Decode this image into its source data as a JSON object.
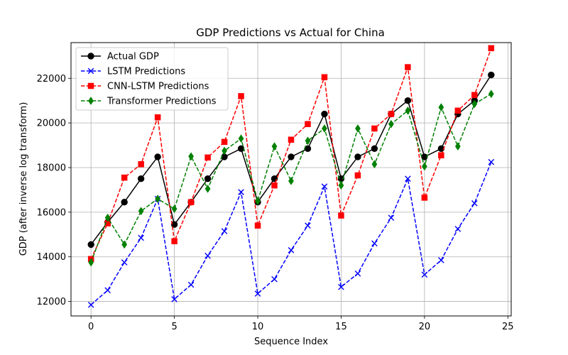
{
  "chart_data": {
    "type": "line",
    "title": "GDP Predictions vs Actual for China",
    "xlabel": "Sequence Index",
    "ylabel": "GDP (after inverse log transform)",
    "xlim": [
      -1.2,
      25.2
    ],
    "ylim": [
      11350,
      23600
    ],
    "x_ticks": [
      0,
      5,
      10,
      15,
      20,
      25
    ],
    "y_ticks": [
      12000,
      14000,
      16000,
      18000,
      20000,
      22000
    ],
    "grid": true,
    "legend_position": "upper-left",
    "x": [
      0,
      1,
      2,
      3,
      4,
      5,
      6,
      7,
      8,
      9,
      10,
      11,
      12,
      13,
      14,
      15,
      16,
      17,
      18,
      19,
      20,
      21,
      22,
      23,
      24
    ],
    "series": [
      {
        "name": "Actual GDP",
        "color": "#000000",
        "line_style": "solid",
        "marker": "circle",
        "values": [
          14550,
          15550,
          16450,
          17500,
          18480,
          15450,
          16450,
          17500,
          18480,
          18850,
          16450,
          17500,
          18480,
          18850,
          20400,
          17500,
          18480,
          18850,
          20400,
          21000,
          18480,
          18850,
          20400,
          21000,
          22150
        ]
      },
      {
        "name": "LSTM Predictions",
        "color": "#0000ff",
        "line_style": "dashed",
        "marker": "x",
        "values": [
          11850,
          12500,
          13750,
          14850,
          16600,
          12100,
          12750,
          14050,
          15150,
          16900,
          12350,
          13000,
          14300,
          15400,
          17150,
          12650,
          13250,
          14600,
          15750,
          17500,
          13200,
          13850,
          15250,
          16400,
          18250
        ]
      },
      {
        "name": "CNN-LSTM Predictions",
        "color": "#ff0000",
        "line_style": "dashed",
        "marker": "square",
        "values": [
          13900,
          15500,
          17550,
          18150,
          20250,
          14700,
          16450,
          18450,
          19150,
          21200,
          15400,
          17200,
          19250,
          19950,
          22050,
          15850,
          17650,
          19750,
          20400,
          22500,
          16650,
          18550,
          20550,
          21250,
          23350
        ]
      },
      {
        "name": "Transformer Predictions",
        "color": "#008000",
        "line_style": "dashed",
        "marker": "diamond",
        "values": [
          13750,
          15750,
          14550,
          16050,
          16600,
          16150,
          18500,
          17050,
          18750,
          19300,
          16500,
          18950,
          17400,
          19200,
          19750,
          17200,
          19750,
          18150,
          19950,
          20550,
          18050,
          20700,
          18950,
          20850,
          21300
        ]
      }
    ]
  }
}
